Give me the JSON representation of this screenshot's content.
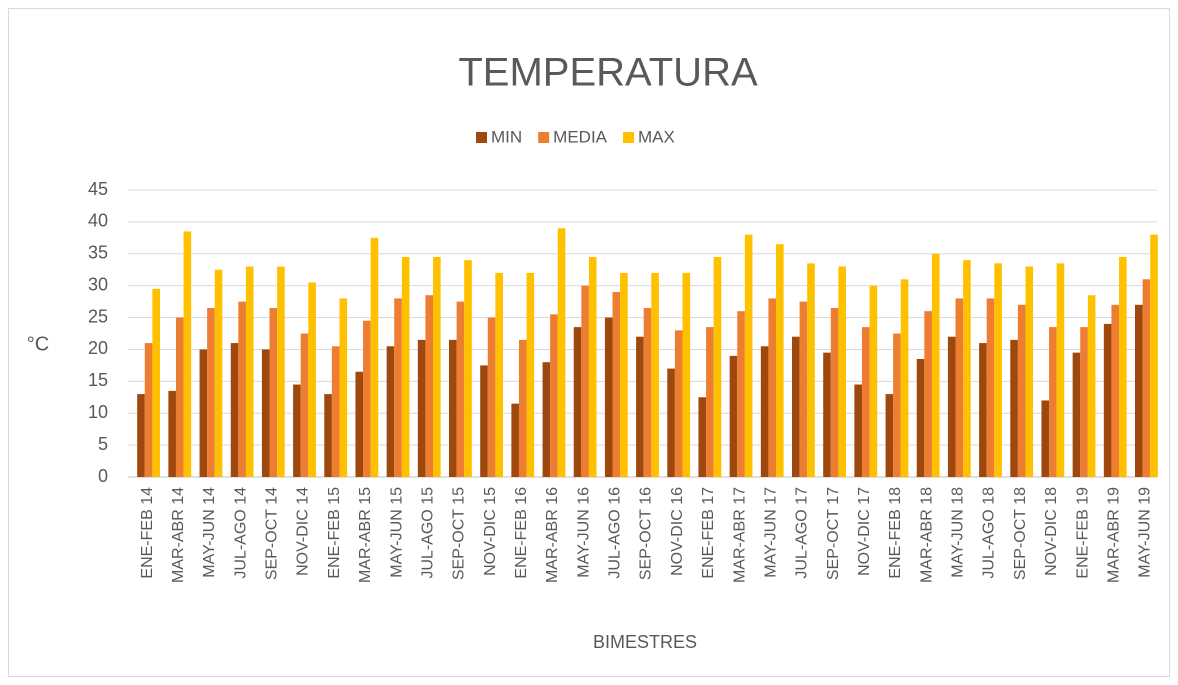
{
  "chart_data": {
    "type": "bar",
    "title": "TEMPERATURA",
    "x_label": "BIMESTRES",
    "y_label": "°C",
    "categories": [
      "ENE-FEB 14",
      "MAR-ABR 14",
      "MAY-JUN 14",
      "JUL-AGO 14",
      "SEP-OCT 14",
      "NOV-DIC 14",
      "ENE-FEB 15",
      "MAR-ABR 15",
      "MAY-JUN 15",
      "JUL-AGO 15",
      "SEP-OCT 15",
      "NOV-DIC 15",
      "ENE-FEB 16",
      "MAR-ABR 16",
      "MAY-JUN 16",
      "JUL-AGO 16",
      "SEP-OCT 16",
      "NOV-DIC 16",
      "ENE-FEB 17",
      "MAR-ABR 17",
      "MAY-JUN 17",
      "JUL-AGO 17",
      "SEP-OCT 17",
      "NOV-DIC 17",
      "ENE-FEB 18",
      "MAR-ABR 18",
      "MAY-JUN 18",
      "JUL-AGO 18",
      "SEP-OCT 18",
      "NOV-DIC 18",
      "ENE-FEB 19",
      "MAR-ABR 19",
      "MAY-JUN 19"
    ],
    "series": [
      {
        "name": "MIN",
        "color": "#9e480e",
        "values": [
          13,
          13.5,
          20,
          21,
          20,
          14.5,
          13,
          16.5,
          20.5,
          21.5,
          21.5,
          17.5,
          11.5,
          18,
          23.5,
          25,
          22,
          17,
          12.5,
          19,
          20.5,
          22,
          19.5,
          14.5,
          13,
          18.5,
          22,
          21,
          21.5,
          12,
          19.5,
          24,
          27
        ]
      },
      {
        "name": "MEDIA",
        "color": "#ed7d31",
        "values": [
          21,
          25,
          26.5,
          27.5,
          26.5,
          22.5,
          20.5,
          24.5,
          28,
          28.5,
          27.5,
          25,
          21.5,
          25.5,
          30,
          29,
          26.5,
          23,
          23.5,
          26,
          28,
          27.5,
          26.5,
          23.5,
          22.5,
          26,
          28,
          28,
          27,
          23.5,
          23.5,
          27,
          31
        ]
      },
      {
        "name": "MAX",
        "color": "#ffc000",
        "values": [
          29.5,
          38.5,
          32.5,
          33,
          33,
          30.5,
          28,
          37.5,
          34.5,
          34.5,
          34,
          32,
          32,
          39,
          34.5,
          32,
          32,
          32,
          34.5,
          38,
          36.5,
          33.5,
          33,
          30,
          31,
          35,
          34,
          33.5,
          33,
          33.5,
          28.5,
          34.5,
          38
        ]
      }
    ],
    "ylim": [
      0,
      45
    ],
    "yticks": [
      0,
      5,
      10,
      15,
      20,
      25,
      30,
      35,
      40,
      45
    ],
    "grid": true,
    "legend": "top"
  }
}
